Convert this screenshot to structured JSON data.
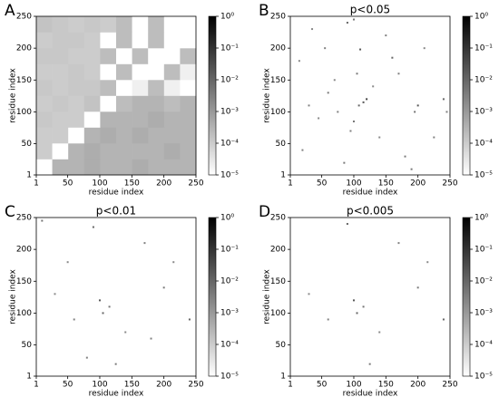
{
  "chart_data": [
    {
      "type": "heatmap",
      "panel": "A",
      "xlabel": "residue index",
      "ylabel": "residue index",
      "xlim": [
        1,
        250
      ],
      "ylim": [
        1,
        250
      ],
      "xticks": [
        1,
        50,
        100,
        150,
        200,
        250
      ],
      "yticks": [
        1,
        50,
        100,
        150,
        200,
        250
      ],
      "color_scale": "log",
      "clim": [
        1e-05,
        1
      ],
      "cticks": [
        {
          "value": 1,
          "label": "10⁰"
        },
        {
          "value": 0.1,
          "label": "10⁻¹"
        },
        {
          "value": 0.01,
          "label": "10⁻²"
        },
        {
          "value": 0.001,
          "label": "10⁻³"
        },
        {
          "value": 0.0001,
          "label": "10⁻⁴"
        },
        {
          "value": 1e-05,
          "label": "10⁻⁵"
        }
      ],
      "z": [
        [
          1e-05,
          0.0003,
          0.0003,
          0.0004,
          0.0003,
          0.0003,
          0.0004,
          0.0003,
          0.0003,
          0.0003
        ],
        [
          0.0001,
          1e-05,
          0.0003,
          0.0004,
          0.0003,
          0.0003,
          0.0003,
          0.0003,
          0.0004,
          0.0003
        ],
        [
          0.0001,
          0.0001,
          1e-05,
          0.0003,
          0.0004,
          0.0003,
          0.0004,
          0.0003,
          0.0003,
          0.0003
        ],
        [
          0.00012,
          0.0001,
          0.0001,
          1e-05,
          0.0003,
          0.0003,
          0.0003,
          0.0004,
          0.0003,
          0.0003
        ],
        [
          0.0001,
          0.00012,
          0.0001,
          0.00015,
          1e-05,
          0.0002,
          0.0003,
          0.0003,
          0.0002,
          0.0003
        ],
        [
          0.00012,
          0.0001,
          0.00012,
          0.00012,
          0.0002,
          1e-05,
          2e-05,
          0.0002,
          2e-05,
          1e-05
        ],
        [
          0.0001,
          0.0001,
          0.00012,
          0.0001,
          1e-05,
          0.0002,
          1e-05,
          1e-05,
          0.0002,
          2e-05
        ],
        [
          0.00012,
          0.00012,
          0.0001,
          0.0001,
          0.0002,
          1e-05,
          0.0002,
          1e-05,
          1e-05,
          0.0002
        ],
        [
          0.0001,
          0.00012,
          0.00012,
          0.0001,
          1e-05,
          0.0002,
          1e-05,
          0.0002,
          1e-05,
          1e-05
        ],
        [
          0.00015,
          0.00012,
          0.0001,
          0.00012,
          0.0001,
          0.0002,
          1e-05,
          0.0002,
          1e-05,
          1e-05
        ]
      ]
    },
    {
      "type": "heatmap",
      "panel": "B",
      "title": "p<0.05",
      "xlabel": "residue index",
      "ylabel": "residue index",
      "xlim": [
        1,
        250
      ],
      "ylim": [
        1,
        250
      ],
      "xticks": [
        1,
        50,
        100,
        150,
        200,
        250
      ],
      "yticks": [
        1,
        50,
        100,
        150,
        200,
        250
      ],
      "color_scale": "log",
      "clim": [
        1e-05,
        1
      ],
      "cticks": [
        {
          "value": 1,
          "label": "10⁰"
        },
        {
          "value": 0.1,
          "label": "10⁻¹"
        },
        {
          "value": 0.01,
          "label": "10⁻²"
        },
        {
          "value": 0.001,
          "label": "10⁻³"
        },
        {
          "value": 0.0001,
          "label": "10⁻⁴"
        },
        {
          "value": 1e-05,
          "label": "10⁻⁵"
        }
      ],
      "x": [
        90,
        100,
        110,
        120,
        108,
        30,
        45,
        60,
        75,
        140,
        160,
        170,
        200,
        195,
        240,
        245,
        15,
        20,
        85,
        95,
        130,
        150,
        180,
        210,
        55,
        70,
        100,
        115,
        190,
        225,
        35,
        105
      ],
      "y": [
        240,
        245,
        198,
        120,
        110,
        110,
        90,
        130,
        100,
        60,
        185,
        160,
        110,
        100,
        120,
        100,
        180,
        40,
        20,
        70,
        140,
        220,
        30,
        200,
        200,
        150,
        85,
        115,
        10,
        60,
        230,
        160
      ],
      "values": [
        0.01,
        0.005,
        0.02,
        0.05,
        0.01,
        0.003,
        0.002,
        0.004,
        0.003,
        0.002,
        0.01,
        0.003,
        0.02,
        0.005,
        0.01,
        0.003,
        0.002,
        0.003,
        0.004,
        0.003,
        0.002,
        0.003,
        0.004,
        0.002,
        0.003,
        0.002,
        0.005,
        0.02,
        0.004,
        0.003,
        0.002,
        0.004
      ]
    },
    {
      "type": "heatmap",
      "panel": "C",
      "title": "p<0.01",
      "xlabel": "residue index",
      "ylabel": "residue index",
      "xlim": [
        1,
        250
      ],
      "ylim": [
        1,
        250
      ],
      "xticks": [
        1,
        50,
        100,
        150,
        200,
        250
      ],
      "yticks": [
        1,
        50,
        100,
        150,
        200,
        250
      ],
      "color_scale": "log",
      "clim": [
        1e-05,
        1
      ],
      "cticks": [
        {
          "value": 1,
          "label": "10⁰"
        },
        {
          "value": 0.1,
          "label": "10⁻¹"
        },
        {
          "value": 0.01,
          "label": "10⁻²"
        },
        {
          "value": 0.001,
          "label": "10⁻³"
        },
        {
          "value": 0.0001,
          "label": "10⁻⁴"
        },
        {
          "value": 1e-05,
          "label": "10⁻⁵"
        }
      ],
      "x": [
        10,
        90,
        100,
        105,
        115,
        60,
        140,
        170,
        200,
        240,
        30,
        80,
        125,
        215,
        180,
        50
      ],
      "y": [
        245,
        235,
        120,
        100,
        110,
        90,
        70,
        210,
        140,
        90,
        130,
        30,
        20,
        180,
        60,
        180
      ],
      "values": [
        0.005,
        0.01,
        0.02,
        0.01,
        0.005,
        0.003,
        0.002,
        0.003,
        0.004,
        0.01,
        0.002,
        0.003,
        0.004,
        0.002,
        0.003,
        0.002
      ]
    },
    {
      "type": "heatmap",
      "panel": "D",
      "title": "p<0.005",
      "xlabel": "residue index",
      "ylabel": "residue index",
      "xlim": [
        1,
        250
      ],
      "ylim": [
        1,
        250
      ],
      "xticks": [
        1,
        50,
        100,
        150,
        200,
        250
      ],
      "yticks": [
        1,
        50,
        100,
        150,
        200,
        250
      ],
      "color_scale": "log",
      "clim": [
        1e-05,
        1
      ],
      "cticks": [
        {
          "value": 1,
          "label": "10⁰"
        },
        {
          "value": 0.1,
          "label": "10⁻¹"
        },
        {
          "value": 0.01,
          "label": "10⁻²"
        },
        {
          "value": 0.001,
          "label": "10⁻³"
        },
        {
          "value": 0.0001,
          "label": "10⁻⁴"
        },
        {
          "value": 1e-05,
          "label": "10⁻⁵"
        }
      ],
      "x": [
        90,
        100,
        105,
        115,
        60,
        140,
        200,
        240,
        30,
        125,
        215,
        170
      ],
      "y": [
        240,
        120,
        100,
        110,
        90,
        70,
        140,
        90,
        130,
        20,
        180,
        210
      ],
      "values": [
        0.01,
        0.02,
        0.01,
        0.005,
        0.003,
        0.002,
        0.004,
        0.01,
        0.002,
        0.004,
        0.002,
        0.003
      ]
    }
  ]
}
